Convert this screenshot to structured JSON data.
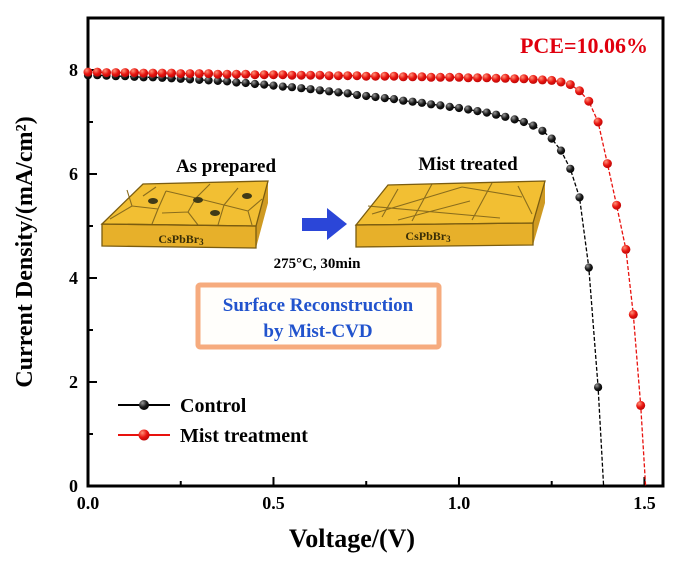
{
  "figure": {
    "pce_annotation": "PCE=10.06%",
    "xlabel": "Voltage/(V)",
    "ylabel": "Current Density/(mA/cm²)"
  },
  "legend": [
    {
      "label": "Control",
      "color": "#000000"
    },
    {
      "label": "Mist treatment",
      "color": "#e8120e"
    }
  ],
  "inset": {
    "left_caption": "As prepared",
    "right_caption": "Mist treated",
    "formula_base": "CsPbBr",
    "formula_sub": "3",
    "arrow_caption": "275°C, 30min",
    "box_line1": "Surface Reconstruction",
    "box_line2": "by Mist-CVD"
  },
  "colors": {
    "control": "#000000",
    "mist": "#e8120e",
    "pce_text": "#e0000e",
    "inset_blue_text": "#2153cd",
    "box_border": "#f6ab7e",
    "box_fill": "#fffefb",
    "arrow_blue": "#2b46d8",
    "arrow_outline": "#1b2f9e",
    "slab_top": "#f2bf33",
    "slab_front": "#e7b02a",
    "slab_side": "#cf9a22",
    "slab_outline": "#7a5c10",
    "grain_line": "#8a6d1d",
    "grain_spot": "#3f3a18",
    "axis_black": "#000000"
  },
  "chart_data": {
    "type": "line",
    "title": "",
    "xlabel": "Voltage/(V)",
    "ylabel": "Current Density/(mA/cm²)",
    "annotation": "PCE=10.06%",
    "xlim": [
      0,
      1.55
    ],
    "ylim": [
      0,
      9.0
    ],
    "x_major_ticks": [
      0.0,
      0.5,
      1.0,
      1.5
    ],
    "x_major_labels": [
      "0.0",
      "0.5",
      "1.0",
      "1.5"
    ],
    "x_minor_ticks": [
      0.25,
      0.75,
      1.25
    ],
    "y_major_ticks": [
      0,
      2,
      4,
      6,
      8
    ],
    "y_major_labels": [
      "0",
      "2",
      "4",
      "6",
      "8"
    ],
    "y_minor_ticks": [
      1,
      3,
      5,
      7
    ],
    "grid": false,
    "legend_position": "lower-left-inside",
    "series": [
      {
        "name": "Control",
        "color": "#000000",
        "marker": "sphere",
        "x": [
          0.0,
          0.025,
          0.05,
          0.075,
          0.1,
          0.125,
          0.15,
          0.175,
          0.2,
          0.225,
          0.25,
          0.275,
          0.3,
          0.325,
          0.35,
          0.375,
          0.4,
          0.425,
          0.45,
          0.475,
          0.5,
          0.525,
          0.55,
          0.575,
          0.6,
          0.625,
          0.65,
          0.675,
          0.7,
          0.725,
          0.75,
          0.775,
          0.8,
          0.825,
          0.85,
          0.875,
          0.9,
          0.925,
          0.95,
          0.975,
          1.0,
          1.025,
          1.05,
          1.075,
          1.1,
          1.125,
          1.15,
          1.175,
          1.2,
          1.225,
          1.25,
          1.275,
          1.3,
          1.325,
          1.35,
          1.375,
          1.39
        ],
        "y": [
          7.9,
          7.9,
          7.89,
          7.88,
          7.88,
          7.87,
          7.86,
          7.86,
          7.85,
          7.84,
          7.83,
          7.82,
          7.81,
          7.8,
          7.79,
          7.78,
          7.76,
          7.75,
          7.73,
          7.72,
          7.7,
          7.68,
          7.67,
          7.65,
          7.63,
          7.61,
          7.59,
          7.57,
          7.55,
          7.52,
          7.5,
          7.48,
          7.46,
          7.44,
          7.41,
          7.39,
          7.37,
          7.34,
          7.32,
          7.29,
          7.27,
          7.24,
          7.21,
          7.18,
          7.14,
          7.1,
          7.05,
          7.0,
          6.93,
          6.83,
          6.68,
          6.45,
          6.1,
          5.55,
          4.2,
          1.9,
          0.0
        ]
      },
      {
        "name": "Mist treatment",
        "color": "#e8120e",
        "marker": "sphere",
        "x": [
          0.0,
          0.025,
          0.05,
          0.075,
          0.1,
          0.125,
          0.15,
          0.175,
          0.2,
          0.225,
          0.25,
          0.275,
          0.3,
          0.325,
          0.35,
          0.375,
          0.4,
          0.425,
          0.45,
          0.475,
          0.5,
          0.525,
          0.55,
          0.575,
          0.6,
          0.625,
          0.65,
          0.675,
          0.7,
          0.725,
          0.75,
          0.775,
          0.8,
          0.825,
          0.85,
          0.875,
          0.9,
          0.925,
          0.95,
          0.975,
          1.0,
          1.025,
          1.05,
          1.075,
          1.1,
          1.125,
          1.15,
          1.175,
          1.2,
          1.225,
          1.25,
          1.275,
          1.3,
          1.325,
          1.35,
          1.375,
          1.4,
          1.425,
          1.45,
          1.47,
          1.49,
          1.503
        ],
        "y": [
          7.96,
          7.96,
          7.95,
          7.95,
          7.95,
          7.95,
          7.94,
          7.94,
          7.94,
          7.94,
          7.93,
          7.93,
          7.93,
          7.93,
          7.92,
          7.92,
          7.92,
          7.92,
          7.91,
          7.91,
          7.91,
          7.91,
          7.9,
          7.9,
          7.9,
          7.9,
          7.89,
          7.89,
          7.89,
          7.89,
          7.88,
          7.88,
          7.88,
          7.88,
          7.87,
          7.87,
          7.87,
          7.86,
          7.86,
          7.86,
          7.86,
          7.85,
          7.85,
          7.85,
          7.84,
          7.84,
          7.83,
          7.83,
          7.82,
          7.81,
          7.8,
          7.77,
          7.72,
          7.6,
          7.4,
          7.0,
          6.2,
          5.4,
          4.55,
          3.3,
          1.55,
          0.0
        ]
      }
    ]
  }
}
